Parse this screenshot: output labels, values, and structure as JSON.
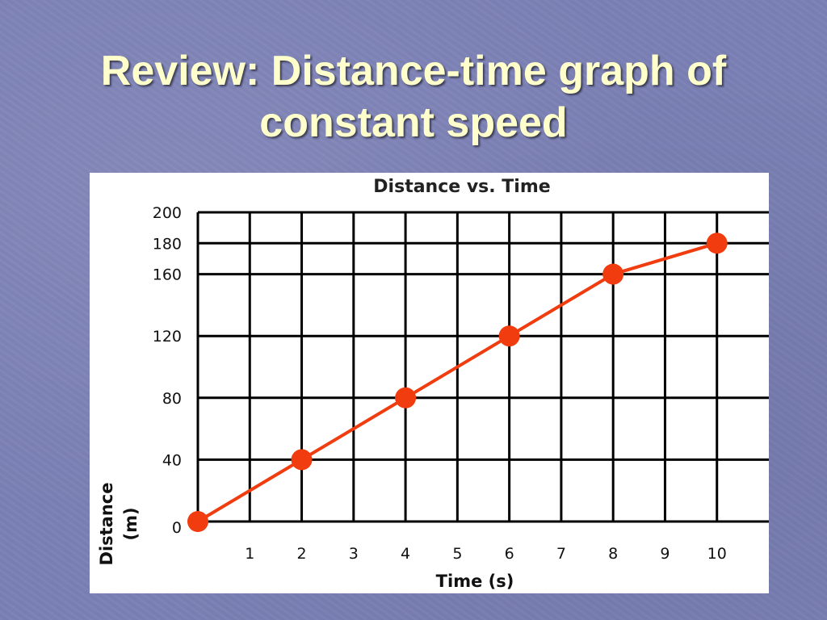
{
  "slide": {
    "title_line1": "Review: Distance-time graph of",
    "title_line2": "constant speed"
  },
  "colors": {
    "background": "#7b80b5",
    "title_text": "#ffffcc",
    "series": "#f03c0f",
    "grid": "#000000"
  },
  "chart_data": {
    "type": "line",
    "title": "Distance vs. Time",
    "xlabel": "Time (s)",
    "ylabel_line1": "Distance",
    "ylabel_line2": "(m)",
    "xlim": [
      0,
      11
    ],
    "ylim": [
      0,
      200
    ],
    "x_ticks": [
      1,
      2,
      3,
      4,
      5,
      6,
      7,
      8,
      9,
      10
    ],
    "y_ticks": [
      0,
      40,
      80,
      120,
      160,
      180,
      200
    ],
    "x_grid": [
      1,
      2,
      3,
      4,
      5,
      6,
      7,
      8,
      9,
      10
    ],
    "y_grid": [
      40,
      80,
      120,
      160,
      180
    ],
    "grid": true,
    "series": [
      {
        "x": [
          0,
          2,
          4,
          6,
          8,
          10
        ],
        "y": [
          0,
          40,
          80,
          120,
          160,
          180
        ]
      }
    ]
  }
}
